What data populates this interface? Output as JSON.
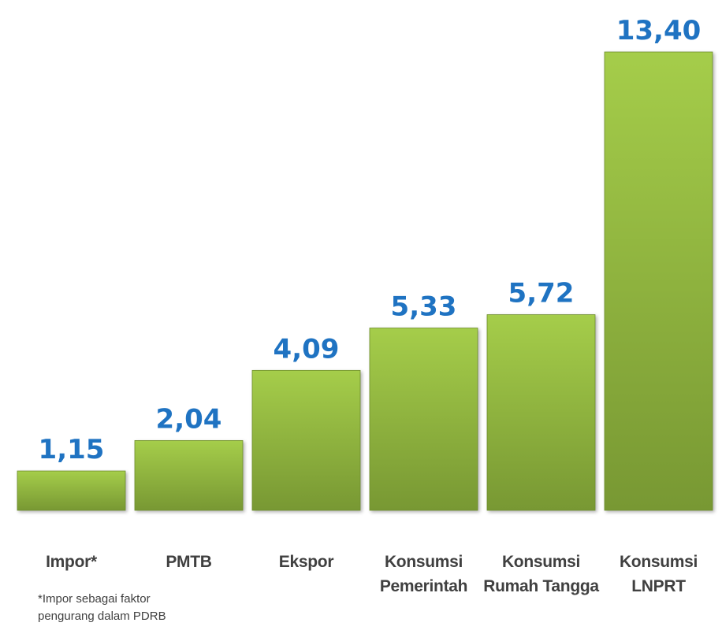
{
  "chart_data": {
    "type": "bar",
    "categories": [
      "Impor*",
      "PMTB",
      "Ekspor",
      "Konsumsi Pemerintah",
      "Konsumsi Rumah Tangga",
      "Konsumsi LNPRT"
    ],
    "values": [
      1.15,
      2.04,
      4.09,
      5.33,
      5.72,
      13.4
    ],
    "value_labels": [
      "1,15",
      "2,04",
      "4,09",
      "5,33",
      "5,72",
      "13,40"
    ],
    "color": "#8db83f",
    "annotation": "*Impor sebagai faktor pengurang dalam PDRB"
  }
}
